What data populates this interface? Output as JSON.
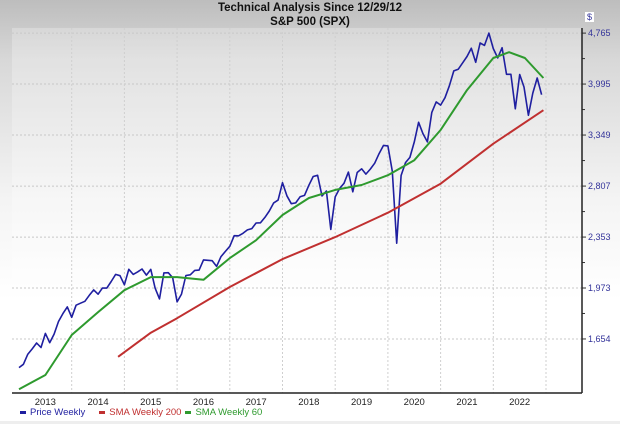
{
  "chart_data": {
    "type": "line",
    "title": "Technical Analysis Since 12/29/12",
    "subtitle": "S&P 500 (SPX)",
    "y_unit": "$",
    "y_scale": "log",
    "ylim": [
      1372,
      4850
    ],
    "xlim": [
      2012.96,
      2023.7
    ],
    "yticks": [
      1654,
      1973,
      2353,
      2807,
      3349,
      3995,
      4765
    ],
    "ytick_labels": [
      "1,654",
      "1,973",
      "2,353",
      "2,807",
      "3,349",
      "3,995",
      "4,765"
    ],
    "xtick_labels": [
      "2013",
      "2014",
      "2015",
      "2016",
      "2017",
      "2018",
      "2019",
      "2020",
      "2021",
      "2022"
    ],
    "grid": true,
    "legend_position": "bottom-left",
    "series": [
      {
        "name": "Price Weekly",
        "color": "#1f1fa0",
        "x_start": 2013.0,
        "x_step_months": 1,
        "values": [
          1498,
          1515,
          1569,
          1598,
          1631,
          1606,
          1686,
          1633,
          1682,
          1757,
          1806,
          1848,
          1783,
          1859,
          1872,
          1884,
          1924,
          1960,
          1931,
          1972,
          1972,
          2018,
          2068,
          2059,
          1995,
          2105,
          2068,
          2086,
          2107,
          2063,
          2104,
          1972,
          1900,
          2079,
          2080,
          2044,
          1880,
          1932,
          2060,
          2065,
          2097,
          2099,
          2174,
          2171,
          2168,
          2126,
          2199,
          2239,
          2279,
          2364,
          2363,
          2384,
          2412,
          2423,
          2470,
          2472,
          2519,
          2575,
          2648,
          2674,
          2840,
          2714,
          2641,
          2648,
          2705,
          2718,
          2816,
          2902,
          2914,
          2712,
          2760,
          2416,
          2704,
          2784,
          2834,
          2946,
          2752,
          2942,
          2980,
          2926,
          2977,
          3038,
          3141,
          3231,
          3226,
          2954,
          2304,
          2912,
          3044,
          3100,
          3271,
          3500,
          3363,
          3270,
          3622,
          3756,
          3714,
          3811,
          3973,
          4181,
          4204,
          4298,
          4395,
          4523,
          4308,
          4605,
          4567,
          4766,
          4516,
          4374,
          4530,
          4132,
          4132,
          3667,
          4130,
          3955,
          3586,
          3872,
          4080,
          3850
        ]
      },
      {
        "name": "SMA Weekly 200",
        "color": "#c03030",
        "points": [
          [
            2014.88,
            1555
          ],
          [
            2015.5,
            1690
          ],
          [
            2016.0,
            1777
          ],
          [
            2017.0,
            1980
          ],
          [
            2018.0,
            2180
          ],
          [
            2019.0,
            2353
          ],
          [
            2020.0,
            2560
          ],
          [
            2021.0,
            2830
          ],
          [
            2022.0,
            3250
          ],
          [
            2022.95,
            3650
          ]
        ]
      },
      {
        "name": "SMA Weekly 60",
        "color": "#2e9a2e",
        "points": [
          [
            2013.0,
            1390
          ],
          [
            2013.5,
            1460
          ],
          [
            2014.0,
            1677
          ],
          [
            2014.5,
            1815
          ],
          [
            2015.0,
            1958
          ],
          [
            2015.5,
            2049
          ],
          [
            2016.0,
            2049
          ],
          [
            2016.5,
            2030
          ],
          [
            2017.0,
            2188
          ],
          [
            2017.5,
            2328
          ],
          [
            2018.0,
            2540
          ],
          [
            2018.5,
            2694
          ],
          [
            2019.0,
            2770
          ],
          [
            2019.5,
            2817
          ],
          [
            2020.0,
            2915
          ],
          [
            2020.5,
            3070
          ],
          [
            2021.0,
            3408
          ],
          [
            2021.5,
            3913
          ],
          [
            2022.0,
            4372
          ],
          [
            2022.3,
            4460
          ],
          [
            2022.6,
            4372
          ],
          [
            2022.95,
            4080
          ]
        ]
      }
    ]
  }
}
